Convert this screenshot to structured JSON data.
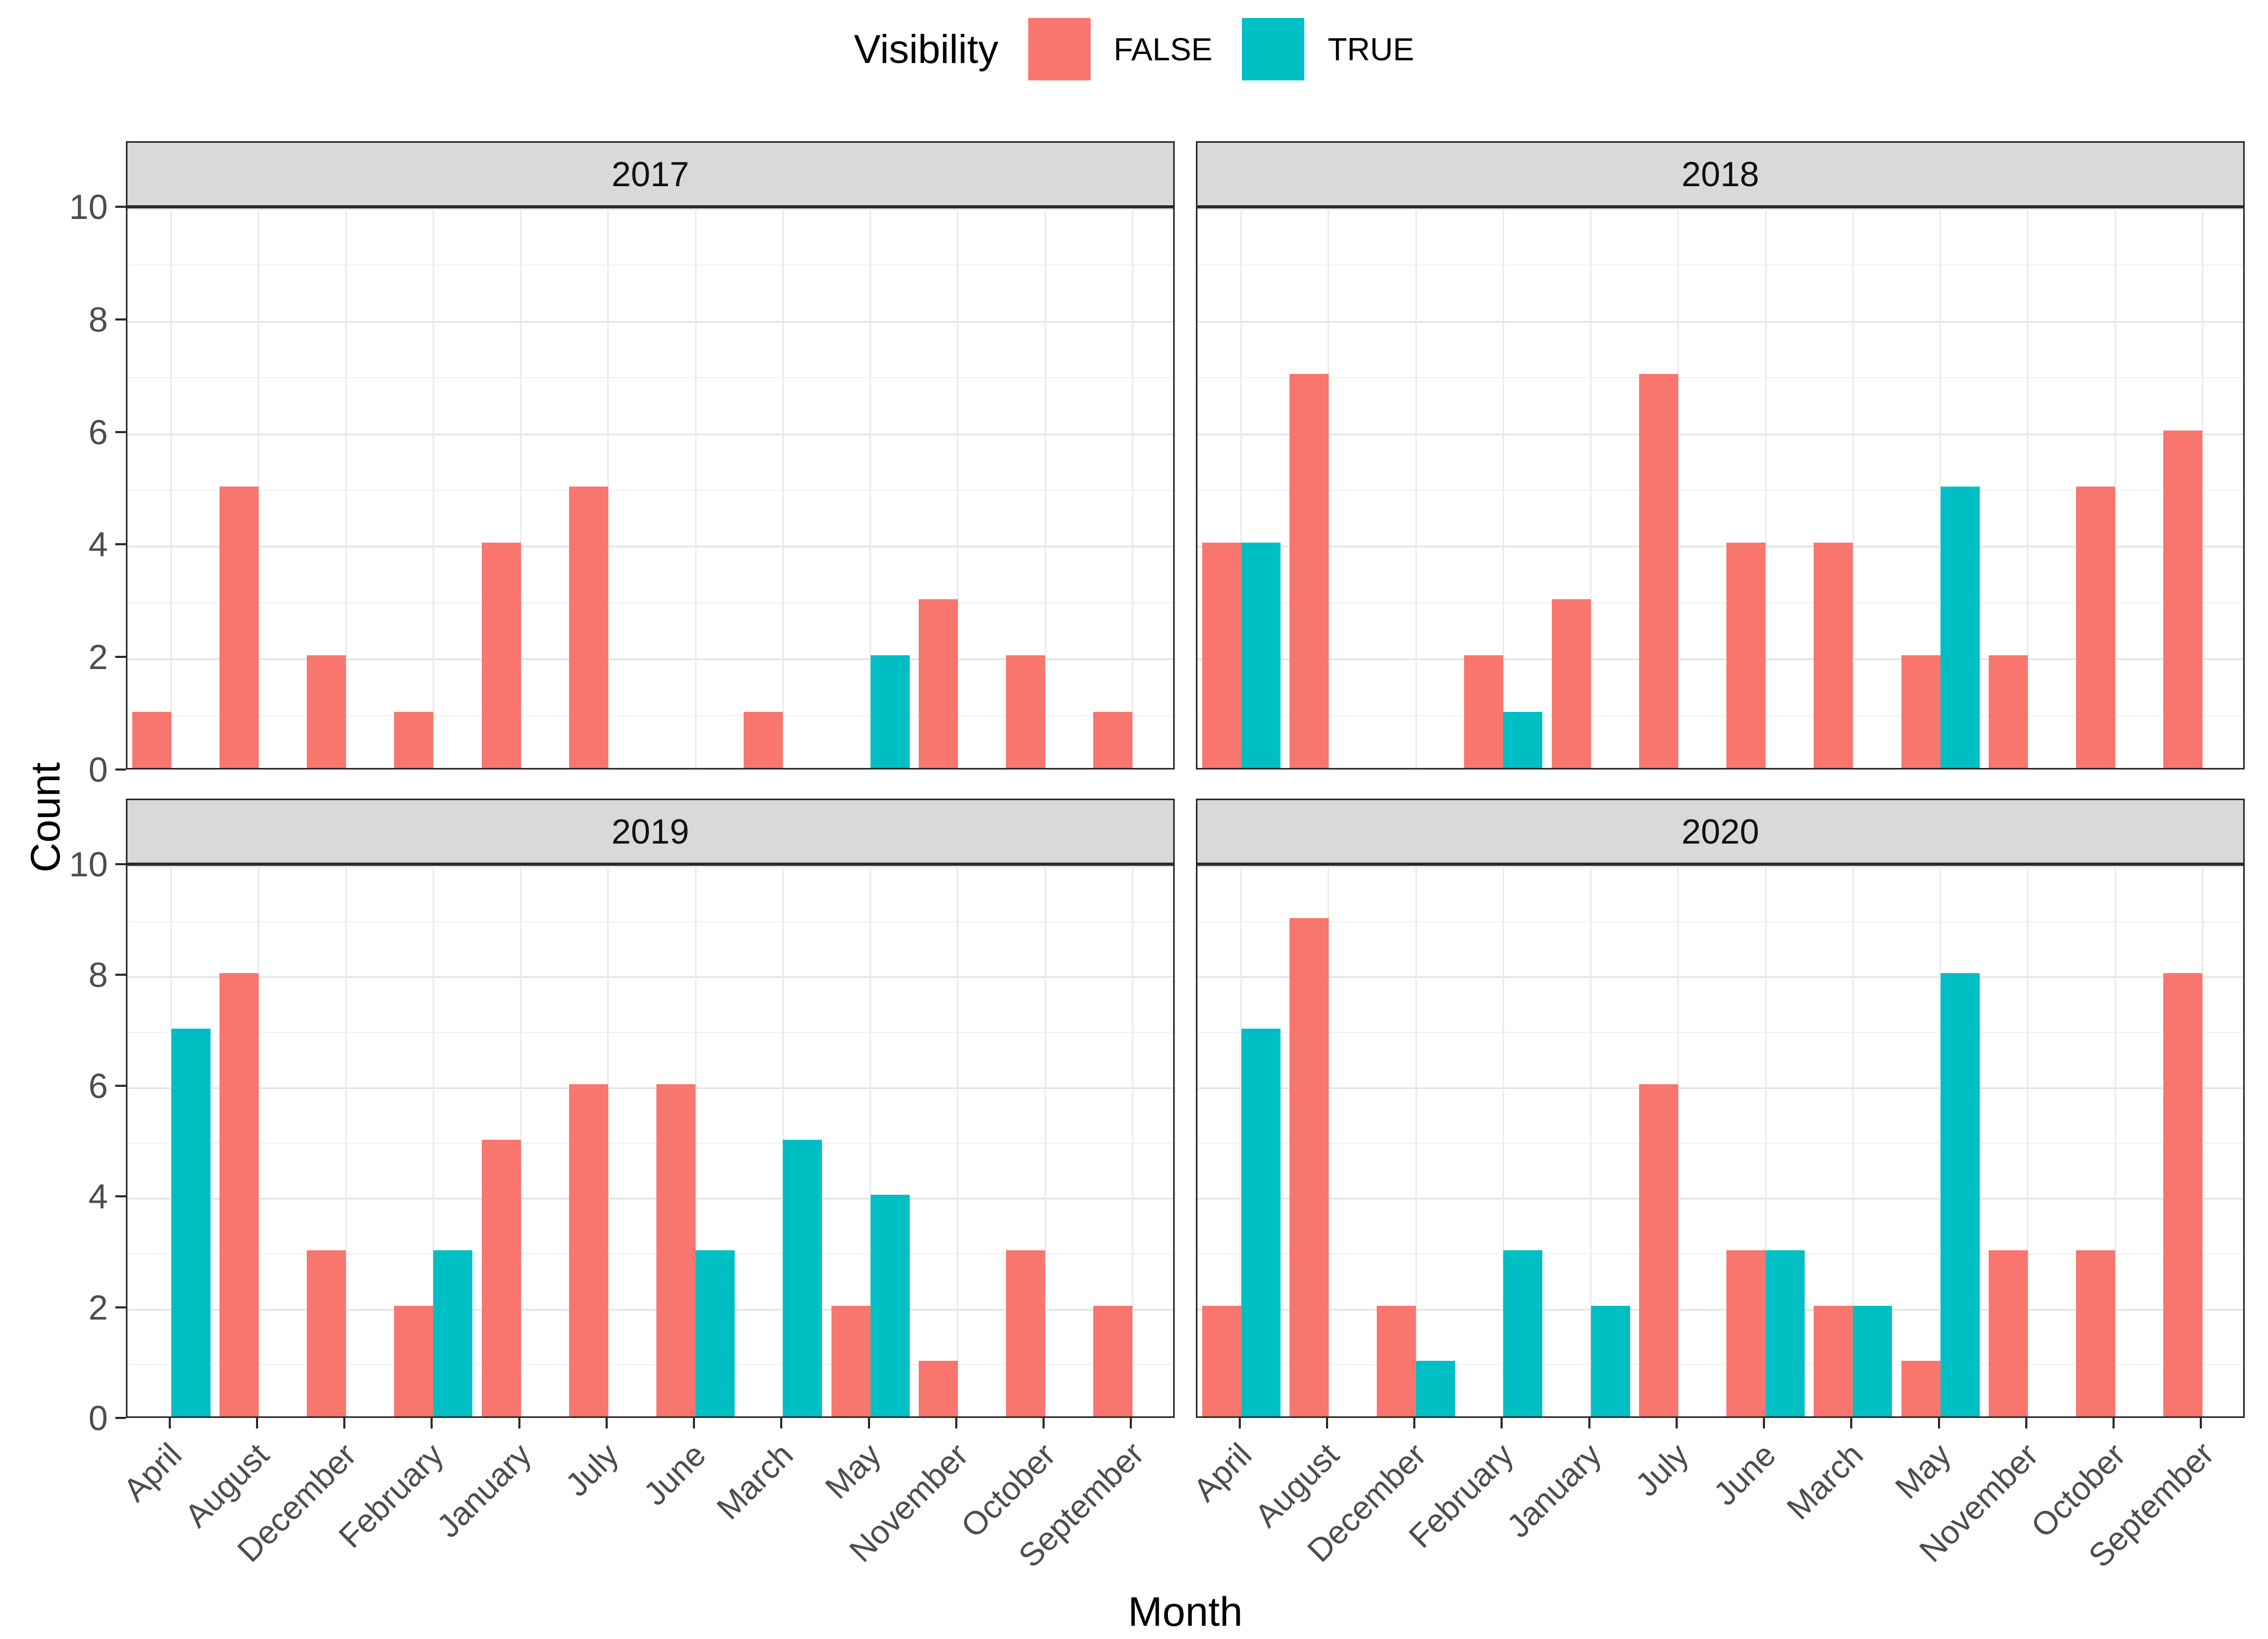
{
  "legend": {
    "title": "Visibility",
    "items": [
      {
        "label": "FALSE",
        "color": "#F8766D"
      },
      {
        "label": "TRUE",
        "color": "#00BFC4"
      }
    ]
  },
  "axes": {
    "x_title": "Month",
    "y_title": "Count",
    "y_ticks": [
      0,
      2,
      4,
      6,
      8,
      10
    ]
  },
  "style": {
    "false_color": "#F8766D",
    "true_color": "#00BFC4",
    "strip_bg": "#D9D9D9",
    "panel_border": "#2b2b2b",
    "grid_major": "#e3e3e3",
    "grid_minor": "#f0f0f0"
  },
  "chart_data": {
    "type": "bar",
    "grouped": true,
    "legend_position": "top",
    "grid": true,
    "ylim": [
      0,
      10
    ],
    "xlabel": "Month",
    "ylabel": "Count",
    "facets": [
      "2017",
      "2018",
      "2019",
      "2020"
    ],
    "categories": [
      "April",
      "August",
      "December",
      "February",
      "January",
      "July",
      "June",
      "March",
      "May",
      "November",
      "October",
      "September"
    ],
    "series_names": [
      "FALSE",
      "TRUE"
    ],
    "facet_series": {
      "2017": {
        "FALSE": [
          1,
          5,
          2,
          1,
          4,
          5,
          null,
          1,
          null,
          3,
          2,
          1
        ],
        "TRUE": [
          null,
          null,
          null,
          null,
          null,
          null,
          null,
          null,
          2,
          null,
          null,
          null
        ]
      },
      "2018": {
        "FALSE": [
          4,
          7,
          null,
          2,
          3,
          7,
          4,
          4,
          2,
          2,
          5,
          6
        ],
        "TRUE": [
          4,
          null,
          null,
          1,
          null,
          null,
          null,
          null,
          5,
          null,
          null,
          null
        ]
      },
      "2019": {
        "FALSE": [
          null,
          8,
          3,
          2,
          5,
          6,
          6,
          null,
          2,
          1,
          3,
          2
        ],
        "TRUE": [
          7,
          null,
          null,
          3,
          null,
          null,
          3,
          5,
          4,
          null,
          null,
          null
        ]
      },
      "2020": {
        "FALSE": [
          2,
          9,
          2,
          null,
          null,
          6,
          3,
          2,
          1,
          3,
          3,
          8
        ],
        "TRUE": [
          7,
          null,
          1,
          3,
          2,
          null,
          3,
          2,
          8,
          null,
          null,
          null
        ]
      }
    }
  }
}
